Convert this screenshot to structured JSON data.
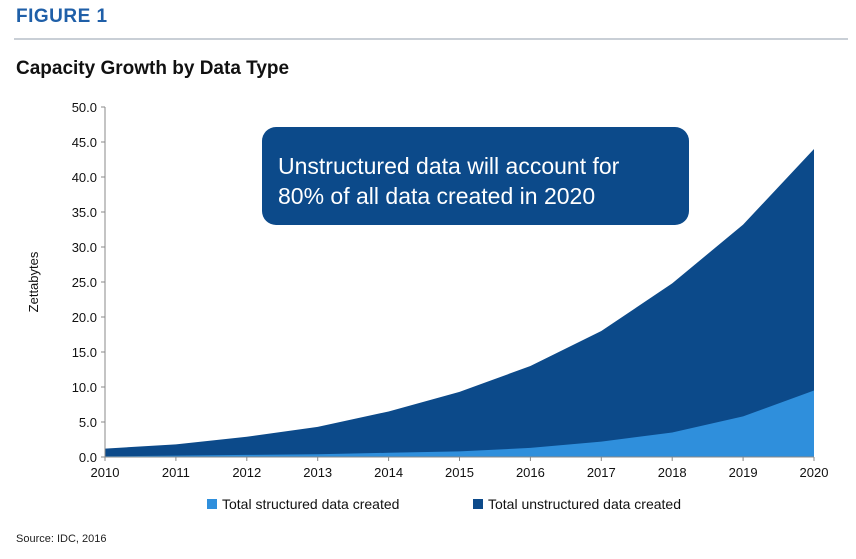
{
  "figure_label": "FIGURE 1",
  "source": "Source: IDC, 2016",
  "colors": {
    "unstructured": "#0c4a8a",
    "structured": "#2f8fdc",
    "callout": "#0c4a8a",
    "rule": "#c9cfd6",
    "figure_label": "#1f5fa8"
  },
  "chart_data": {
    "type": "area",
    "stacked": true,
    "title": "Capacity Growth by Data Type",
    "xlabel": "",
    "ylabel": "Zettabytes",
    "ylim": [
      0,
      50
    ],
    "x": [
      2010,
      2011,
      2012,
      2013,
      2014,
      2015,
      2016,
      2017,
      2018,
      2019,
      2020
    ],
    "y_ticks": [
      "0.0",
      "5.0",
      "10.0",
      "15.0",
      "20.0",
      "25.0",
      "30.0",
      "35.0",
      "40.0",
      "45.0",
      "50.0"
    ],
    "series": [
      {
        "name": "Total structured data created",
        "values": [
          0.1,
          0.2,
          0.3,
          0.4,
          0.6,
          0.8,
          1.3,
          2.2,
          3.5,
          5.8,
          9.5
        ]
      },
      {
        "name": "Total unstructured data created",
        "values": [
          1.1,
          1.6,
          2.6,
          3.9,
          5.9,
          8.5,
          11.7,
          15.8,
          21.3,
          27.4,
          34.5
        ]
      }
    ],
    "grid": false,
    "legend_position": "bottom",
    "annotation": "Unstructured data will account for 80% of all data created in 2020"
  }
}
